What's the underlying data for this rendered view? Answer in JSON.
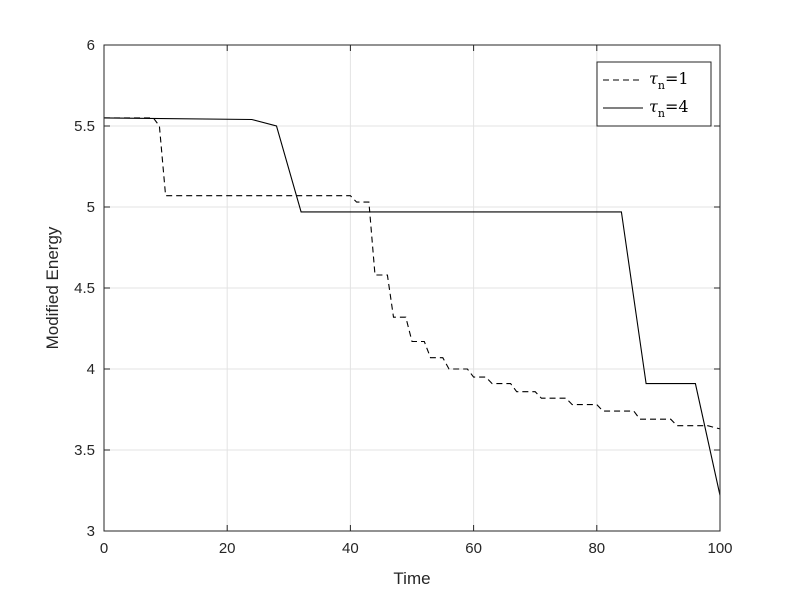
{
  "chart_data": {
    "type": "line",
    "title": "",
    "xlabel": "Time",
    "ylabel": "Modified Energy",
    "xlim": [
      0,
      100
    ],
    "ylim": [
      3,
      6
    ],
    "xticks": [
      0,
      20,
      40,
      60,
      80,
      100
    ],
    "yticks": [
      3,
      3.5,
      4,
      4.5,
      5,
      5.5,
      6
    ],
    "xtick_labels": [
      "0",
      "20",
      "40",
      "60",
      "80",
      "100"
    ],
    "ytick_labels": [
      "3",
      "3.5",
      "4",
      "4.5",
      "5",
      "5.5",
      "6"
    ],
    "grid": true,
    "legend_position": "top-right",
    "series": [
      {
        "name": "τn=1",
        "legend_symbol": "τ",
        "legend_subscript": "n",
        "legend_value": "=1",
        "line_style": "dashed",
        "color": "#000000",
        "x": [
          0,
          8,
          9,
          10,
          40,
          41,
          43,
          44,
          46,
          47,
          49,
          50,
          52,
          53,
          55,
          56,
          59,
          60,
          62,
          63,
          66,
          67,
          70,
          71,
          75,
          76,
          80,
          81,
          86,
          87,
          92,
          93,
          98,
          100
        ],
        "y": [
          5.55,
          5.55,
          5.5,
          5.07,
          5.07,
          5.03,
          5.03,
          4.58,
          4.58,
          4.32,
          4.32,
          4.17,
          4.17,
          4.07,
          4.07,
          4.0,
          4.0,
          3.95,
          3.95,
          3.91,
          3.91,
          3.86,
          3.86,
          3.82,
          3.82,
          3.78,
          3.78,
          3.74,
          3.74,
          3.69,
          3.69,
          3.65,
          3.65,
          3.63
        ]
      },
      {
        "name": "τn=4",
        "legend_symbol": "τ",
        "legend_subscript": "n",
        "legend_value": "=4",
        "line_style": "solid",
        "color": "#000000",
        "x": [
          0,
          24,
          28,
          32,
          84,
          88,
          96,
          100
        ],
        "y": [
          5.55,
          5.54,
          5.5,
          4.97,
          4.97,
          3.91,
          3.91,
          3.22
        ]
      }
    ]
  }
}
